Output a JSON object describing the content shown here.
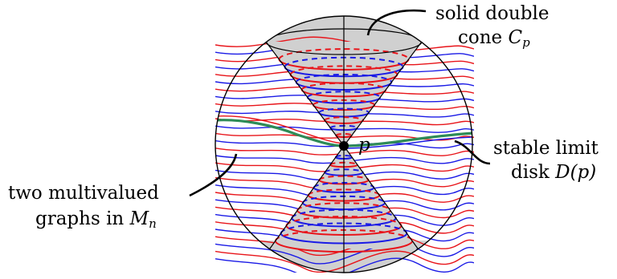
{
  "labels": {
    "cone_line1": "solid double",
    "cone_line2_text": "cone",
    "cone_symbol": "C",
    "cone_sub": "p",
    "stable_line1": "stable limit",
    "stable_line2_text": "disk",
    "stable_symbol": "D(p)",
    "graphs_line1": "two multivalued",
    "graphs_line2_text": "graphs in",
    "graphs_symbol": "M",
    "graphs_sub": "n",
    "point": "p"
  },
  "colors": {
    "red": "#e8141a",
    "blue": "#1a1ae6",
    "green": "#2e8b57",
    "gray": "#d0d0d0",
    "black": "#000000"
  }
}
